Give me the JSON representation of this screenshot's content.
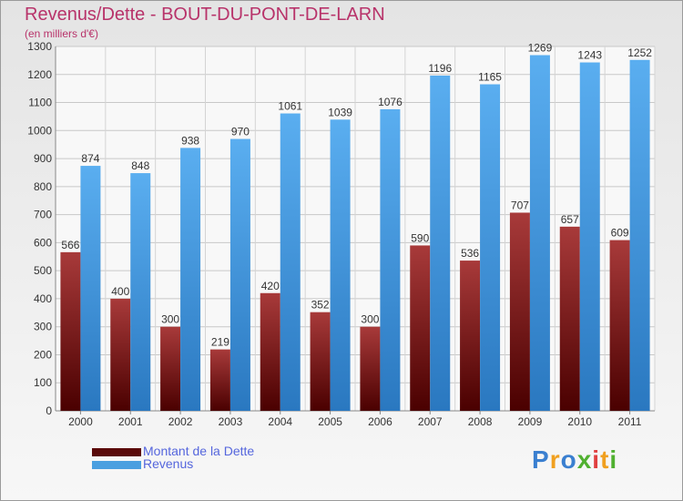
{
  "title": "Revenus/Dette - BOUT-DU-PONT-DE-LARN",
  "subtitle": "(en milliers d'€)",
  "logo": "Proxiti",
  "chart_data": {
    "type": "bar",
    "categories": [
      "2000",
      "2001",
      "2002",
      "2003",
      "2004",
      "2005",
      "2006",
      "2007",
      "2008",
      "2009",
      "2010",
      "2011"
    ],
    "series": [
      {
        "name": "Montant de la Dette",
        "values": [
          566,
          400,
          300,
          219,
          420,
          352,
          300,
          590,
          536,
          707,
          657,
          609
        ],
        "color": "#7a1a1a"
      },
      {
        "name": "Revenus",
        "values": [
          874,
          848,
          938,
          970,
          1061,
          1039,
          1076,
          1196,
          1165,
          1269,
          1243,
          1252
        ],
        "color": "#4a9fe0"
      }
    ],
    "ylim": [
      0,
      1300
    ],
    "yticks": [
      0,
      100,
      200,
      300,
      400,
      500,
      600,
      700,
      800,
      900,
      1000,
      1100,
      1200,
      1300
    ],
    "grid": true,
    "legend_position": "bottom-left"
  }
}
